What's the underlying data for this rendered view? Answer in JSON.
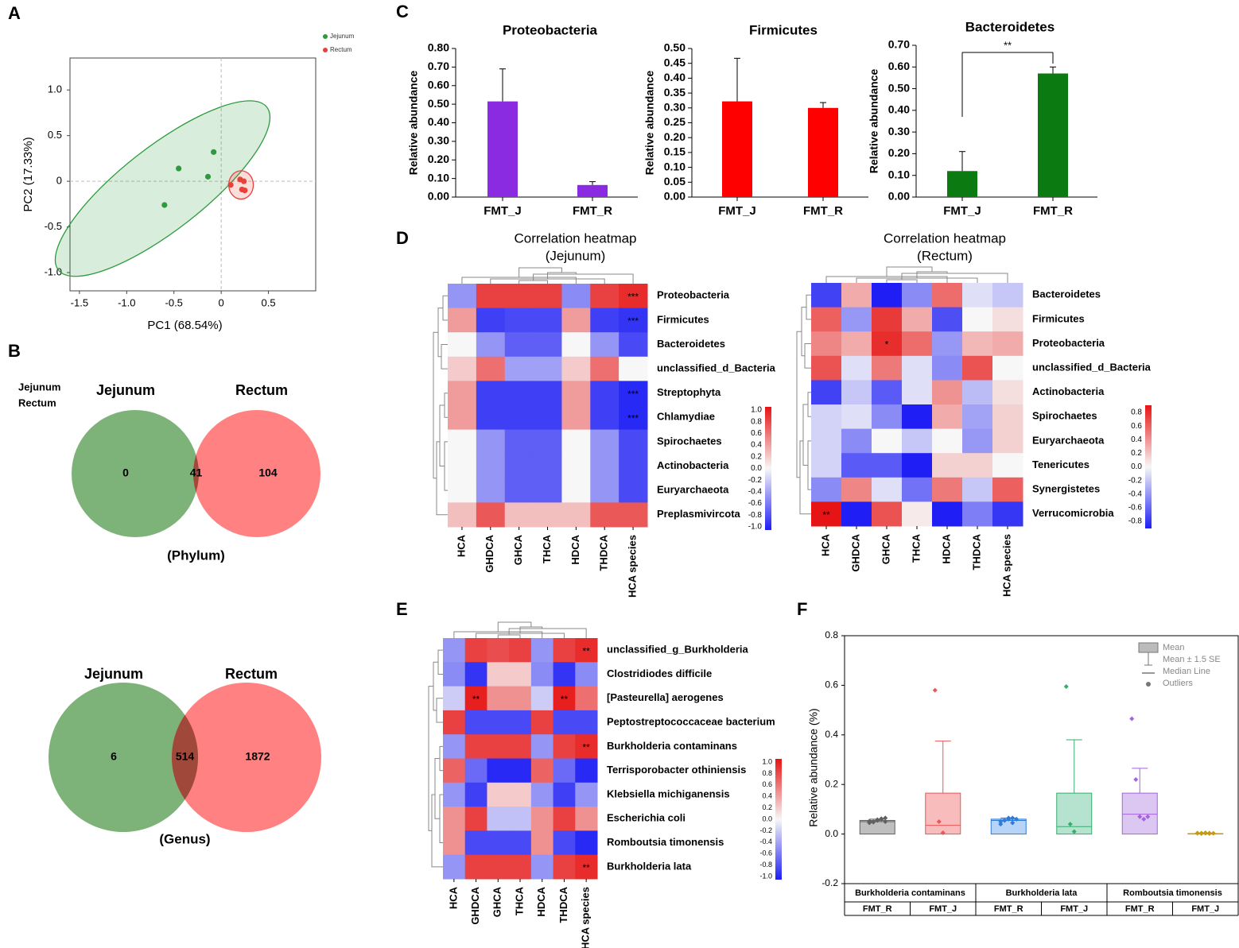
{
  "panel_letters": [
    "A",
    "B",
    "C",
    "D",
    "E",
    "F"
  ],
  "chart_data": [
    {
      "id": "A",
      "type": "scatter",
      "title": "",
      "xlabel": "PC1 (68.54%)",
      "ylabel": "PC2 (17.33%)",
      "xlim": [
        -1.6,
        1.0
      ],
      "ylim": [
        -1.2,
        1.35
      ],
      "xticks": [
        -1.5,
        -1.0,
        -0.5,
        0,
        0.5
      ],
      "xtick_labels": [
        "-1.5",
        "-1.0",
        "-0.5",
        "0",
        "0.5"
      ],
      "yticks": [
        1.0,
        0.5,
        0,
        -0.5,
        -1.0
      ],
      "ytick_labels": [
        "1.0",
        "0.5",
        "0",
        "-0.5",
        "-1.0"
      ],
      "legend": [
        "Jejunum",
        "Rectum"
      ],
      "legend_position": "top-right",
      "series": [
        {
          "name": "Jejunum",
          "color": "#2e9a3e",
          "points": [
            [
              -0.08,
              0.32
            ],
            [
              -0.45,
              0.14
            ],
            [
              -0.14,
              0.05
            ],
            [
              -0.6,
              -0.26
            ]
          ],
          "ellipse": {
            "cx": -0.62,
            "cy": -0.08,
            "rx": 1.4,
            "ry": 0.44,
            "angle_deg": 38
          }
        },
        {
          "name": "Rectum",
          "color": "#e8413a",
          "points": [
            [
              0.1,
              -0.04
            ],
            [
              0.2,
              0.02
            ],
            [
              0.24,
              0.0
            ],
            [
              0.22,
              -0.09
            ],
            [
              0.25,
              -0.1
            ]
          ],
          "ellipse": {
            "cx": 0.21,
            "cy": -0.04,
            "rx": 0.13,
            "ry": 0.15,
            "angle_deg": 0
          }
        }
      ]
    },
    {
      "id": "B-phylum",
      "type": "venn",
      "legend": [
        "Jejunum",
        "Rectum"
      ],
      "sets": [
        "Jejunum",
        "Rectum"
      ],
      "values": {
        "only_a": "0",
        "both": "41",
        "only_b": "104"
      },
      "caption": "(Phylum)"
    },
    {
      "id": "B-genus",
      "type": "venn",
      "sets": [
        "Jejunum",
        "Rectum"
      ],
      "values": {
        "only_a": "6",
        "both": "514",
        "only_b": "1872"
      },
      "caption": "(Genus)"
    },
    {
      "id": "C-proteobacteria",
      "type": "bar",
      "title": "Proteobacteria",
      "ylabel": "Relative abundance",
      "categories": [
        "FMT_J",
        "FMT_R"
      ],
      "values": [
        0.515,
        0.065
      ],
      "errors": [
        0.175,
        0.018
      ],
      "color": "#8a2be2",
      "ylim": [
        0,
        0.8
      ],
      "yticks": [
        "0.00",
        "0.10",
        "0.20",
        "0.30",
        "0.40",
        "0.50",
        "0.60",
        "0.70",
        "0.80"
      ]
    },
    {
      "id": "C-firmicutes",
      "type": "bar",
      "title": "Firmicutes",
      "ylabel": "Relative abundance",
      "categories": [
        "FMT_J",
        "FMT_R"
      ],
      "values": [
        0.322,
        0.3
      ],
      "errors": [
        0.145,
        0.018
      ],
      "color": "#ff0000",
      "ylim": [
        0,
        0.5
      ],
      "yticks": [
        "0.00",
        "0.05",
        "0.10",
        "0.15",
        "0.20",
        "0.25",
        "0.30",
        "0.35",
        "0.40",
        "0.45",
        "0.50"
      ]
    },
    {
      "id": "C-bacteroidetes",
      "type": "bar",
      "title": "Bacteroidetes",
      "ylabel": "Relative abundance",
      "categories": [
        "FMT_J",
        "FMT_R"
      ],
      "values": [
        0.12,
        0.57
      ],
      "errors": [
        0.09,
        0.03
      ],
      "color": "#0b7a10",
      "ylim": [
        0,
        0.7
      ],
      "yticks": [
        "0.00",
        "0.10",
        "0.20",
        "0.30",
        "0.40",
        "0.50",
        "0.60",
        "0.70"
      ],
      "significance": "**"
    },
    {
      "id": "D-jejunum",
      "type": "heatmap",
      "title": "Correlation heatmap",
      "subtitle": "(Jejunum)",
      "columns": [
        "HCA",
        "GHDCA",
        "GHCA",
        "THCA",
        "HDCA",
        "THDCA",
        "HCA species"
      ],
      "rows": [
        "Proteobacteria",
        "Firmicutes",
        "Bacteroidetes",
        "unclassified_d_Bacteria",
        "Streptophyta",
        "Chlamydiae",
        "Spirochaetes",
        "Actinobacteria",
        "Euryarchaeota",
        "Preplasmivircota"
      ],
      "values": [
        [
          -0.45,
          0.8,
          0.8,
          0.8,
          -0.5,
          0.8,
          0.9
        ],
        [
          0.4,
          -0.85,
          -0.8,
          -0.8,
          0.4,
          -0.85,
          -0.9
        ],
        [
          0.0,
          -0.45,
          -0.7,
          -0.7,
          0.0,
          -0.45,
          -0.8
        ],
        [
          0.2,
          0.6,
          -0.4,
          -0.4,
          0.2,
          0.6,
          0.0
        ],
        [
          0.4,
          -0.85,
          -0.85,
          -0.85,
          0.4,
          -0.85,
          -0.95
        ],
        [
          0.4,
          -0.85,
          -0.85,
          -0.85,
          0.4,
          -0.85,
          -0.95
        ],
        [
          0.0,
          -0.45,
          -0.7,
          -0.7,
          0.0,
          -0.45,
          -0.8
        ],
        [
          0.0,
          -0.45,
          -0.7,
          -0.7,
          0.0,
          -0.45,
          -0.8
        ],
        [
          0.0,
          -0.45,
          -0.7,
          -0.7,
          0.0,
          -0.45,
          -0.8
        ],
        [
          0.25,
          0.7,
          0.25,
          0.25,
          0.25,
          0.7,
          0.7
        ]
      ],
      "stars": [
        {
          "row": 0,
          "col": 6,
          "text": "***"
        },
        {
          "row": 1,
          "col": 6,
          "text": "***"
        },
        {
          "row": 4,
          "col": 6,
          "text": "***"
        },
        {
          "row": 5,
          "col": 6,
          "text": "***"
        }
      ],
      "colorbar": {
        "min": -1.0,
        "max": 1.0,
        "ticks": [
          "1.0",
          "0.8",
          "0.6",
          "0.4",
          "0.2",
          "0.0",
          "-0.2",
          "-0.4",
          "-0.6",
          "-0.8",
          "-1.0"
        ]
      }
    },
    {
      "id": "D-rectum",
      "type": "heatmap",
      "title": "Correlation heatmap",
      "subtitle": "(Rectum)",
      "columns": [
        "HCA",
        "GHDCA",
        "GHCA",
        "THCA",
        "HDCA",
        "THDCA",
        "HCA species"
      ],
      "rows": [
        "Bacteroidetes",
        "Firmicutes",
        "Proteobacteria",
        "unclassified_d_Bacteria",
        "Actinobacteria",
        "Spirochaetes",
        "Euryarchaeota",
        "Tenericutes",
        "Synergistetes",
        "Verrucomicrobia"
      ],
      "values": [
        [
          -0.75,
          0.3,
          -0.9,
          -0.45,
          0.55,
          -0.1,
          -0.2
        ],
        [
          0.6,
          -0.4,
          0.75,
          0.3,
          -0.7,
          0.0,
          0.1
        ],
        [
          0.45,
          0.3,
          0.8,
          0.55,
          -0.4,
          0.25,
          0.3
        ],
        [
          0.65,
          -0.1,
          0.5,
          -0.1,
          -0.45,
          0.65,
          0.0
        ],
        [
          -0.75,
          -0.2,
          -0.65,
          -0.1,
          0.4,
          -0.25,
          0.1
        ],
        [
          -0.15,
          -0.1,
          -0.45,
          -0.9,
          0.3,
          -0.35,
          0.15
        ],
        [
          -0.15,
          -0.45,
          0.0,
          -0.2,
          0.0,
          -0.4,
          0.15
        ],
        [
          -0.15,
          -0.65,
          -0.65,
          -0.9,
          0.15,
          0.15,
          0.0
        ],
        [
          -0.45,
          0.45,
          -0.1,
          -0.55,
          0.5,
          -0.2,
          0.6
        ],
        [
          0.9,
          -0.9,
          0.65,
          0.05,
          -0.95,
          -0.5,
          -0.8
        ]
      ],
      "stars": [
        {
          "row": 2,
          "col": 2,
          "text": "*"
        },
        {
          "row": 9,
          "col": 0,
          "text": "**"
        }
      ],
      "colorbar": {
        "min": -0.9,
        "max": 0.9,
        "ticks": [
          "0.8",
          "0.6",
          "0.4",
          "0.2",
          "0.0",
          "-0.2",
          "-0.4",
          "-0.6",
          "-0.8"
        ]
      }
    },
    {
      "id": "E",
      "type": "heatmap",
      "columns": [
        "HCA",
        "GHDCA",
        "GHCA",
        "THCA",
        "HDCA",
        "THDCA",
        "HCA species"
      ],
      "rows": [
        "unclassified_g_Burkholderia",
        "Clostridiodes difficile",
        "[Pasteurella] aerogenes",
        "Peptostreptococcaceae bacterium",
        "Burkholderia contaminans",
        "Terrisporobacter othiniensis",
        "Klebsiella michiganensis",
        "Escherichia coli",
        "Romboutsia timonensis",
        "Burkholderia lata"
      ],
      "values": [
        [
          -0.45,
          0.8,
          0.75,
          0.8,
          -0.45,
          0.8,
          0.9
        ],
        [
          -0.5,
          -0.9,
          0.2,
          0.2,
          -0.5,
          -0.9,
          -0.5
        ],
        [
          -0.2,
          0.95,
          0.45,
          0.45,
          -0.2,
          0.95,
          0.6
        ],
        [
          0.8,
          -0.8,
          -0.8,
          -0.8,
          0.8,
          -0.8,
          -0.8
        ],
        [
          -0.45,
          0.8,
          0.8,
          0.8,
          -0.45,
          0.8,
          0.9
        ],
        [
          0.65,
          -0.65,
          -0.95,
          -0.95,
          0.65,
          -0.65,
          -0.95
        ],
        [
          -0.45,
          -0.85,
          0.2,
          0.2,
          -0.45,
          -0.85,
          -0.45
        ],
        [
          0.45,
          0.8,
          -0.25,
          -0.25,
          0.45,
          0.8,
          0.45
        ],
        [
          0.45,
          -0.8,
          -0.8,
          -0.8,
          0.45,
          -0.8,
          -0.95
        ],
        [
          -0.45,
          0.8,
          0.8,
          0.8,
          -0.45,
          0.8,
          0.9
        ]
      ],
      "stars": [
        {
          "row": 0,
          "col": 6,
          "text": "**"
        },
        {
          "row": 2,
          "col": 1,
          "text": "**"
        },
        {
          "row": 2,
          "col": 5,
          "text": "**"
        },
        {
          "row": 4,
          "col": 6,
          "text": "**"
        },
        {
          "row": 9,
          "col": 6,
          "text": "**"
        }
      ],
      "colorbar": {
        "min": -1.0,
        "max": 1.0,
        "ticks": [
          "1.0",
          "0.8",
          "0.6",
          "0.4",
          "0.2",
          "0.0",
          "-0.2",
          "-0.4",
          "-0.6",
          "-0.8",
          "-1.0"
        ]
      }
    },
    {
      "id": "F",
      "type": "bar",
      "ylabel": "Relative abundance (%)",
      "ylim": [
        -0.2,
        0.8
      ],
      "yticks": [
        "-0.2",
        "0.0",
        "0.2",
        "0.4",
        "0.6",
        "0.8"
      ],
      "groups": [
        "Burkholderia contaminans",
        "Burkholderia lata",
        "Romboutsia timonensis"
      ],
      "categories": [
        "FMT_R",
        "FMT_J",
        "FMT_R",
        "FMT_J",
        "FMT_R",
        "FMT_J"
      ],
      "boxes": [
        {
          "group": 0,
          "mean": 0.055,
          "se_hi": 0.06,
          "median": 0.05,
          "color": "#bfbfbf",
          "edge": "#606060",
          "points": [
            0.045,
            0.05,
            0.055,
            0.06,
            0.065,
            0.052,
            0.048,
            0.058,
            0.062,
            0.05
          ]
        },
        {
          "group": 0,
          "mean": 0.165,
          "se_hi": 0.375,
          "median": 0.035,
          "color": "#f8bcbc",
          "edge": "#e85858",
          "points": [
            0.58,
            0.05,
            0.005
          ]
        },
        {
          "group": 1,
          "mean": 0.06,
          "se_hi": 0.065,
          "median": 0.055,
          "color": "#b7d3f7",
          "edge": "#2f7bd6",
          "points": [
            0.04,
            0.055,
            0.06,
            0.065,
            0.06,
            0.05,
            0.055,
            0.065,
            0.045
          ]
        },
        {
          "group": 1,
          "mean": 0.165,
          "se_hi": 0.38,
          "median": 0.03,
          "color": "#b5e3cf",
          "edge": "#36ad6c",
          "points": [
            0.595,
            0.04,
            0.01
          ]
        },
        {
          "group": 2,
          "mean": 0.165,
          "se_hi": 0.265,
          "median": 0.08,
          "color": "#dcc7f3",
          "edge": "#a562de",
          "points": [
            0.465,
            0.22,
            0.07,
            0.06,
            0.07
          ]
        },
        {
          "group": 2,
          "mean": 0.002,
          "se_hi": 0.004,
          "median": 0.001,
          "color": "#f1d27a",
          "edge": "#c59a10",
          "points": [
            0.003,
            0.004,
            0.005,
            0.002,
            0.003,
            0.004,
            0.002,
            0.003,
            0.004
          ]
        }
      ],
      "legend": [
        "Mean",
        "Mean ± 1.5 SE",
        "Median Line",
        "Outliers"
      ],
      "legend_position": "top-right"
    }
  ]
}
